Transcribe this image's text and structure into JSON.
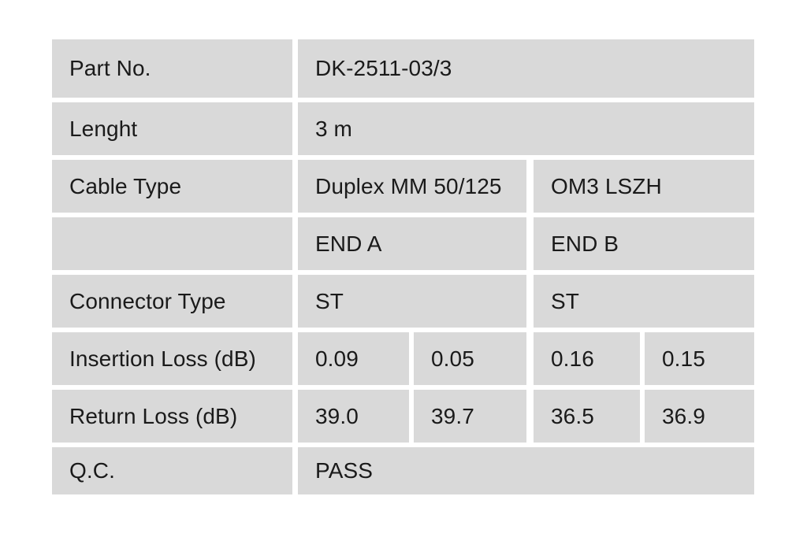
{
  "page": {
    "background": "#ffffff"
  },
  "table": {
    "cell_bg": "#d9d9d9",
    "text_color": "#1a1a1a",
    "rows": [
      {
        "label": "Part No.",
        "value": "DK-2511-03/3"
      },
      {
        "label": "Lenght",
        "value": "3 m"
      },
      {
        "label": "Cable Type",
        "end_a": "Duplex MM 50/125",
        "end_b": "OM3 LSZH"
      },
      {
        "label": "",
        "end_a": "END A",
        "end_b": "END B"
      },
      {
        "label": "Connector Type",
        "end_a": "ST",
        "end_b": "ST"
      },
      {
        "label": "Insertion Loss (dB)",
        "values": [
          "0.09",
          "0.05",
          "0.16",
          "0.15"
        ]
      },
      {
        "label": "Return Loss (dB)",
        "values": [
          "39.0",
          "39.7",
          "36.5",
          "36.9"
        ]
      },
      {
        "label": "Q.C.",
        "value": "PASS"
      }
    ]
  }
}
